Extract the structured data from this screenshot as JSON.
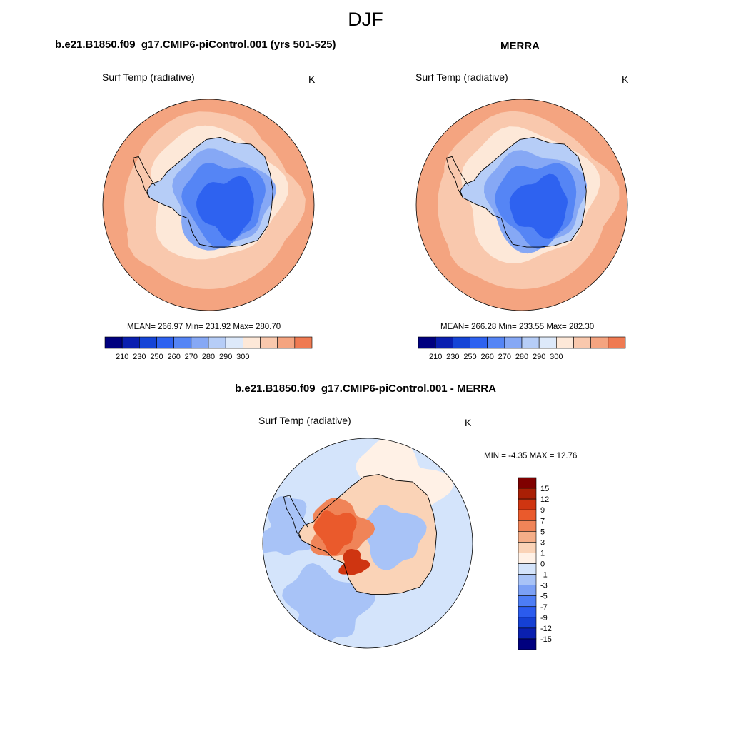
{
  "page": {
    "title": "DJF"
  },
  "panels": {
    "left": {
      "title": "b.e21.B1850.f09_g17.CMIP6-piControl.001 (yrs 501-525)",
      "variable": "Surf Temp (radiative)",
      "units": "K",
      "stats": "MEAN= 266.97  Min= 231.92  Max= 280.70"
    },
    "right": {
      "title": "MERRA",
      "variable": "Surf Temp (radiative)",
      "units": "K",
      "stats": "MEAN= 266.28  Min= 233.55  Max= 282.30"
    },
    "diff": {
      "title": "b.e21.B1850.f09_g17.CMIP6-piControl.001 - MERRA",
      "variable": "Surf Temp (radiative)",
      "units": "K",
      "stats": "MIN =  -4.35 MAX =  12.76"
    }
  },
  "colors": {
    "abs_scale": [
      "#00007f",
      "#0a1fb0",
      "#1544d6",
      "#2e62f0",
      "#5585f5",
      "#86a8f5",
      "#b6cdf7",
      "#dde9fa",
      "#fde8d8",
      "#f9c8ad",
      "#f4a480",
      "#ef7a52",
      "#e44a24",
      "#c42a10",
      "#7f0000"
    ],
    "diff_scale": [
      "#00007f",
      "#0a20b0",
      "#1540d4",
      "#2b5bee",
      "#4d7df5",
      "#7ba0f5",
      "#a8c3f7",
      "#d4e4fb",
      "#fff1e6",
      "#fad3b7",
      "#f5ae88",
      "#f08458",
      "#ea5a2c",
      "#cf3511",
      "#a91f05",
      "#7f0000"
    ],
    "ocean_abs": "#f9c8ad",
    "ocean_warm": "#f4a480",
    "ocean_diff": "#d4e4fb"
  },
  "chart_data": [
    {
      "type": "heatmap",
      "title": "b.e21.B1850.f09_g17.CMIP6-piControl.001 (yrs 501-525)",
      "variable": "Surf Temp (radiative)",
      "units": "K",
      "projection": "south polar stereographic",
      "mean": 266.97,
      "min": 231.92,
      "max": 280.7,
      "colorbar_ticks": [
        210,
        230,
        250,
        260,
        270,
        280,
        290,
        300
      ]
    },
    {
      "type": "heatmap",
      "title": "MERRA",
      "variable": "Surf Temp (radiative)",
      "units": "K",
      "projection": "south polar stereographic",
      "mean": 266.28,
      "min": 233.55,
      "max": 282.3,
      "colorbar_ticks": [
        210,
        230,
        250,
        260,
        270,
        280,
        290,
        300
      ]
    },
    {
      "type": "heatmap",
      "title": "b.e21.B1850.f09_g17.CMIP6-piControl.001 - MERRA",
      "variable": "Surf Temp (radiative)",
      "units": "K",
      "projection": "south polar stereographic",
      "min": -4.35,
      "max": 12.76,
      "colorbar_ticks": [
        15,
        12,
        9,
        7,
        5,
        3,
        1,
        0,
        -1,
        -3,
        -5,
        -7,
        -9,
        -12,
        -15
      ]
    }
  ]
}
